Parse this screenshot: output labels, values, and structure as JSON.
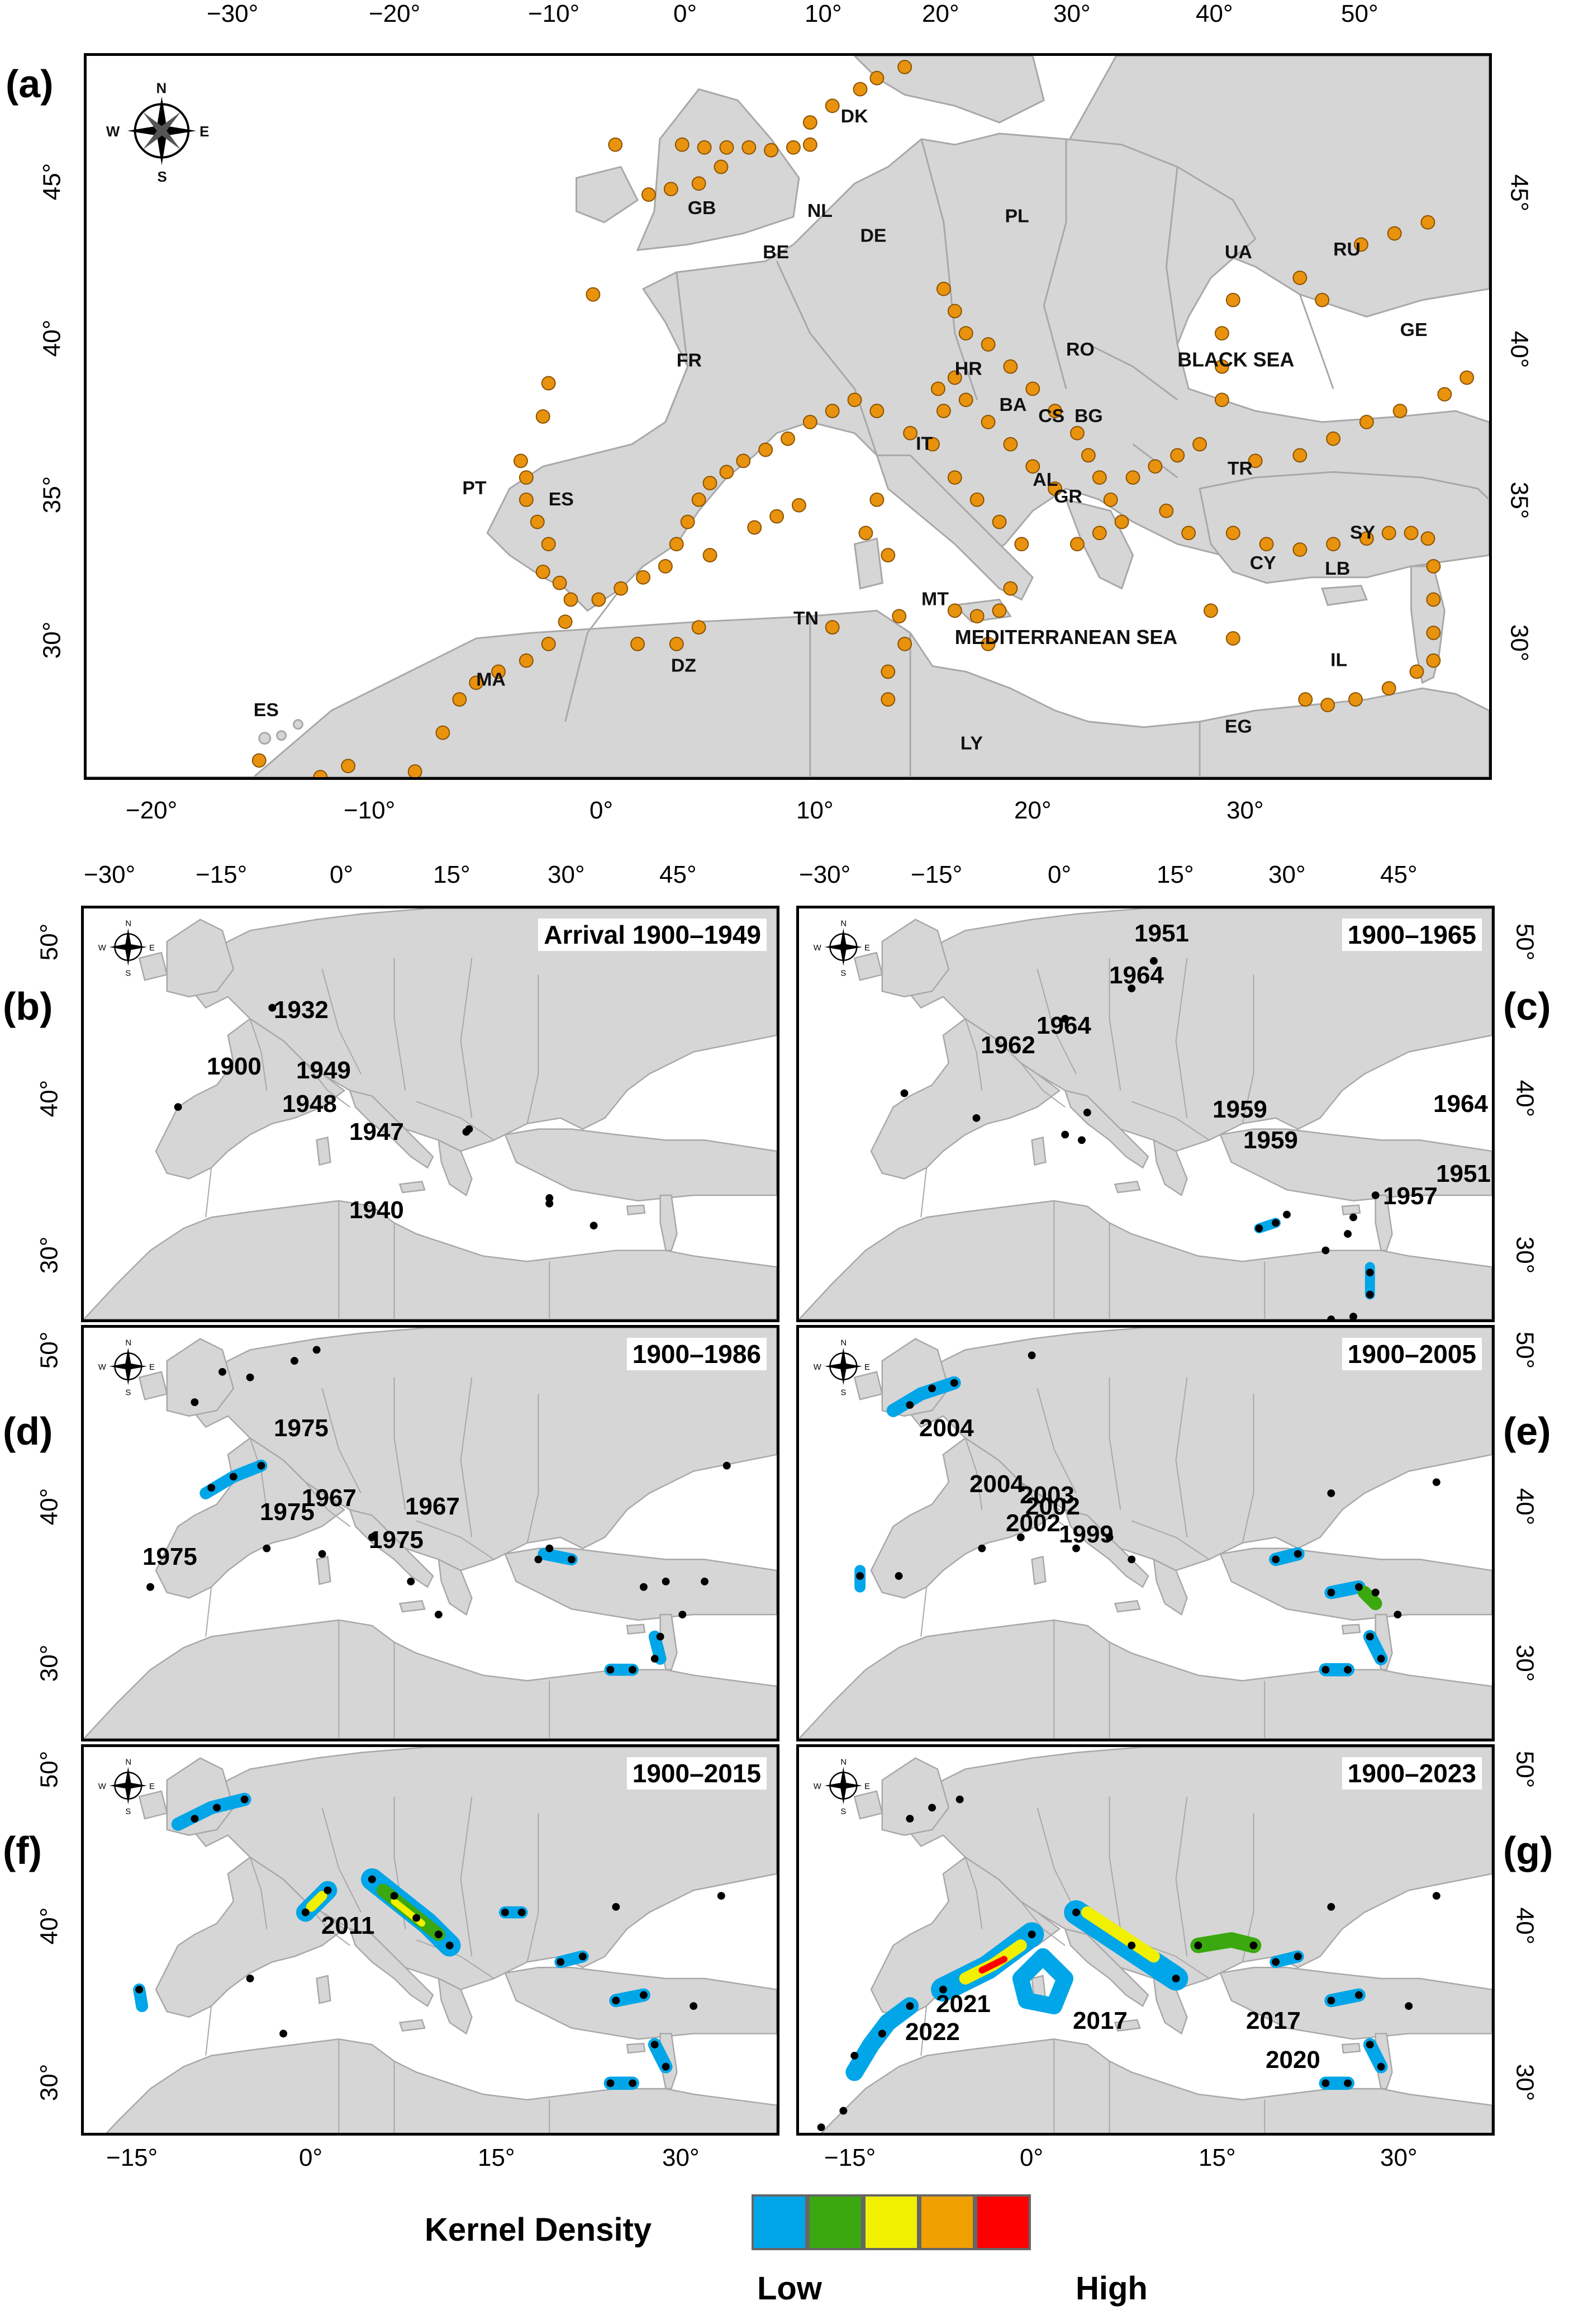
{
  "panels": {
    "a": {
      "letter": "(a)",
      "top_ticks": [
        "−30°",
        "−20°",
        "−10°",
        "0°",
        "10°",
        "20°",
        "30°",
        "40°",
        "50°"
      ],
      "bottom_ticks": [
        "−20°",
        "−10°",
        "0°",
        "10°",
        "20°",
        "30°"
      ],
      "left_ticks": [
        "45°",
        "40°",
        "35°",
        "30°"
      ],
      "right_ticks": [
        "45°",
        "40°",
        "35°",
        "30°"
      ],
      "country_labels": [
        "DK",
        "GB",
        "NL",
        "DE",
        "PL",
        "BE",
        "UA",
        "RU",
        "FR",
        "RO",
        "GE",
        "HR",
        "BA",
        "CS",
        "BG",
        "IT",
        "PT",
        "ES",
        "AL",
        "GR",
        "TR",
        "CY",
        "SY",
        "LB",
        "MT",
        "TN",
        "IL",
        "MA",
        "DZ",
        "ES",
        "EG",
        "LY"
      ],
      "sea_labels": [
        "BLACK SEA",
        "MEDITERRANEAN SEA"
      ]
    },
    "b": {
      "letter": "(b)",
      "title": "Arrival 1900–1949",
      "years": [
        "1932",
        "1900",
        "1949",
        "1948",
        "1947",
        "1940"
      ]
    },
    "c": {
      "letter": "(c)",
      "title": "1900–1965",
      "years": [
        "1951",
        "1964",
        "1964",
        "1962",
        "1959",
        "1959",
        "1964",
        "1951",
        "1957"
      ]
    },
    "d": {
      "letter": "(d)",
      "title": "1900–1986",
      "years": [
        "1975",
        "1975",
        "1967",
        "1975",
        "1967",
        "1975"
      ]
    },
    "e": {
      "letter": "(e)",
      "title": "1900–2005",
      "years": [
        "2004",
        "2004",
        "2003",
        "2002",
        "2002",
        "1999"
      ]
    },
    "f": {
      "letter": "(f)",
      "title": "1900–2015",
      "years": [
        "2011"
      ]
    },
    "g": {
      "letter": "(g)",
      "title": "1900–2023",
      "years": [
        "2021",
        "2022",
        "2017",
        "2017",
        "2020"
      ]
    }
  },
  "small_axes": {
    "top_ticks": [
      "−30°",
      "−15°",
      "0°",
      "15°",
      "30°",
      "45°"
    ],
    "bottom_ticks": [
      "−15°",
      "0°",
      "15°",
      "30°"
    ],
    "left_ticks": [
      "50°",
      "40°",
      "30°"
    ],
    "right_ticks": [
      "50°",
      "40°",
      "30°"
    ]
  },
  "compass": {
    "n": "N",
    "s": "S",
    "e": "E",
    "w": "W"
  },
  "legend": {
    "title": "Kernel Density",
    "low": "Low",
    "high": "High",
    "colors": [
      "#00a6e8",
      "#3aa80e",
      "#f0f000",
      "#f0a000",
      "#ff0000"
    ]
  },
  "colors": {
    "land": "#d6d6d6",
    "border": "#a8a8a8",
    "sea": "#ffffff",
    "record_point": "#e8920e",
    "record_point_edge": "#8a5200",
    "year_point": "#000000"
  }
}
